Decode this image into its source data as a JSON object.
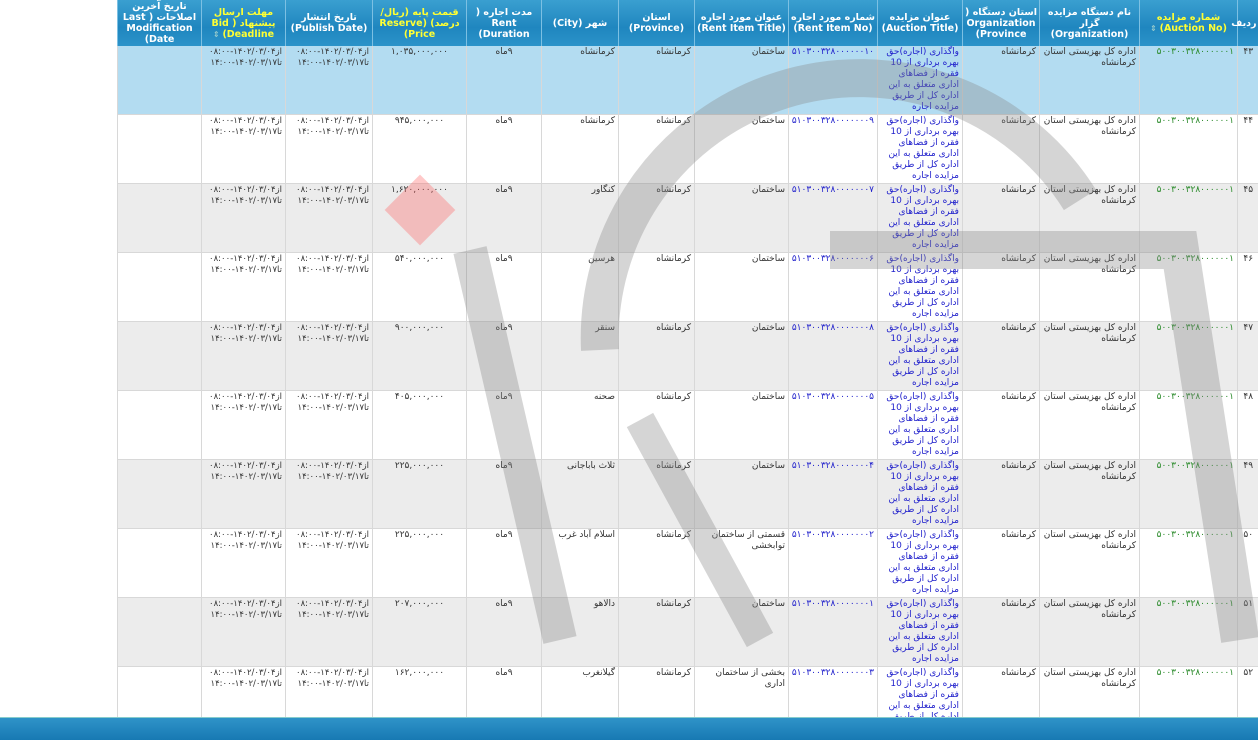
{
  "columns": [
    {
      "label": "ردیف",
      "hl": false
    },
    {
      "label": "شماره مزایده (Auction No)",
      "hl": true,
      "sort": true
    },
    {
      "label": "نام دستگاه مزایده گزار (Organization)",
      "hl": false
    },
    {
      "label": "استان دستگاه ( Organization Province)",
      "hl": false
    },
    {
      "label": "عنوان مزایده (Auction Title)",
      "hl": false
    },
    {
      "label": "شماره مورد اجاره (Rent Item No)",
      "hl": false
    },
    {
      "label": "عنوان مورد اجاره (Rent Item Title)",
      "hl": false
    },
    {
      "label": "استان (Province)",
      "hl": false
    },
    {
      "label": "شهر (City)",
      "hl": false
    },
    {
      "label": "مدت اجاره ( Rent Duration)",
      "hl": false
    },
    {
      "label": "قیمت پایه (ریال/درصد) (Reserve Price)",
      "hl": true
    },
    {
      "label": "تاریخ انتشار (Publish Date)",
      "hl": false
    },
    {
      "label": "مهلت ارسال پیشنهاد ( Bid Deadline)",
      "hl": true,
      "sort": true
    },
    {
      "label": "تاریخ آخرین اصلاحات ( Last Modification Date)",
      "hl": false
    }
  ],
  "sort_icon": "⇕",
  "common": {
    "auction_no": "۵۰۰۳۰۰۳۲۸۰۰۰۰۰۰۱",
    "organization": "اداره کل بهزیستی استان کرمانشاه",
    "org_province": "کرمانشاه",
    "auction_title": "واگذاری (اجاره)حق بهره برداری از 10 فقره از فضاهای اداری متعلق به این اداره کل از طریق مزایده اجاره",
    "province": "کرمانشاه",
    "duration": "۹ماه",
    "publish_date": "از۱۴۰۲/۰۳/۰۴-۰۸:۰۰ تا۱۴۰۲/۰۳/۱۷-۱۴:۰۰",
    "deadline": "از۱۴۰۲/۰۳/۰۴-۰۸:۰۰ تا۱۴۰۲/۰۳/۱۷-۱۴:۰۰",
    "last_modification": ""
  },
  "rows": [
    {
      "row": "۴۳",
      "rent_item_no": "۵۱۰۳۰۰۳۲۸۰۰۰۰۰۰۱۰",
      "rent_item_title": "ساختمان",
      "city": "کرمانشاه",
      "price": "۱,۰۳۵,۰۰۰,۰۰۰",
      "selected": true
    },
    {
      "row": "۴۴",
      "rent_item_no": "۵۱۰۳۰۰۳۲۸۰۰۰۰۰۰۰۹",
      "rent_item_title": "ساختمان",
      "city": "کرمانشاه",
      "price": "۹۴۵,۰۰۰,۰۰۰"
    },
    {
      "row": "۴۵",
      "rent_item_no": "۵۱۰۳۰۰۳۲۸۰۰۰۰۰۰۰۷",
      "rent_item_title": "ساختمان",
      "city": "کنگاور",
      "price": "۱,۶۲۰,۰۰۰,۰۰۰"
    },
    {
      "row": "۴۶",
      "rent_item_no": "۵۱۰۳۰۰۳۲۸۰۰۰۰۰۰۰۶",
      "rent_item_title": "ساختمان",
      "city": "هرسین",
      "price": "۵۴۰,۰۰۰,۰۰۰"
    },
    {
      "row": "۴۷",
      "rent_item_no": "۵۱۰۳۰۰۳۲۸۰۰۰۰۰۰۰۸",
      "rent_item_title": "ساختمان",
      "city": "سنقر",
      "price": "۹۰۰,۰۰۰,۰۰۰"
    },
    {
      "row": "۴۸",
      "rent_item_no": "۵۱۰۳۰۰۳۲۸۰۰۰۰۰۰۰۵",
      "rent_item_title": "ساختمان",
      "city": "صحنه",
      "price": "۴۰۵,۰۰۰,۰۰۰"
    },
    {
      "row": "۴۹",
      "rent_item_no": "۵۱۰۳۰۰۳۲۸۰۰۰۰۰۰۰۴",
      "rent_item_title": "ساختمان",
      "city": "ثلاث باباجانی",
      "price": "۲۲۵,۰۰۰,۰۰۰"
    },
    {
      "row": "۵۰",
      "rent_item_no": "۵۱۰۳۰۰۳۲۸۰۰۰۰۰۰۰۲",
      "rent_item_title": "قسمتی از ساختمان توابخشی",
      "city": "اسلام آباد غرب",
      "price": "۲۲۵,۰۰۰,۰۰۰"
    },
    {
      "row": "۵۱",
      "rent_item_no": "۵۱۰۳۰۰۳۲۸۰۰۰۰۰۰۰۱",
      "rent_item_title": "ساختمان",
      "city": "دالاهو",
      "price": "۲۰۷,۰۰۰,۰۰۰"
    },
    {
      "row": "۵۲",
      "rent_item_no": "۵۱۰۳۰۰۳۲۸۰۰۰۰۰۰۰۳",
      "rent_item_title": "بخشی از ساختمان اداری",
      "city": "گیلانغرب",
      "price": "۱۶۲,۰۰۰,۰۰۰"
    }
  ],
  "colors": {
    "header": "#1f86bf",
    "highlight_text": "#ffff33",
    "selected_row": "#b3dcf1",
    "auction_no": "#2a8a2a",
    "rent_item_no": "#2222cc"
  }
}
